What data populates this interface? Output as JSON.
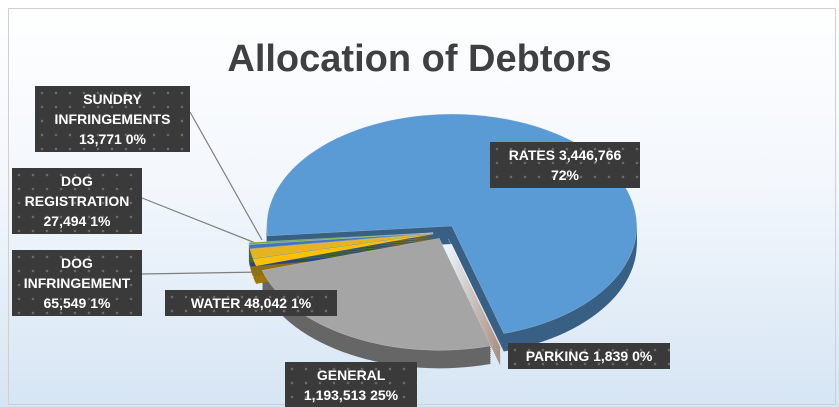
{
  "chart_data": {
    "type": "pie",
    "title": "Allocation of Debtors",
    "categories": [
      "RATES",
      "PARKING",
      "GENERAL",
      "WATER",
      "DOG INFRINGEMENT",
      "DOG REGISTRATION",
      "SUNDRY INFRINGEMENTS"
    ],
    "values": [
      3446766,
      1839,
      1193513,
      48042,
      65549,
      27494,
      13771
    ],
    "value_labels": [
      "3,446,766",
      "1,839",
      "1,193,513",
      "48,042",
      "65,549",
      "27,494",
      "13,771"
    ],
    "percent_labels": [
      "72%",
      "0%",
      "25%",
      "1%",
      "1%",
      "1%",
      "0%"
    ],
    "colors": [
      "#5b9bd5",
      "#c55a11",
      "#a5a5a5",
      "#ffc000",
      "#e6b422",
      "#4472c4",
      "#70ad47"
    ]
  }
}
